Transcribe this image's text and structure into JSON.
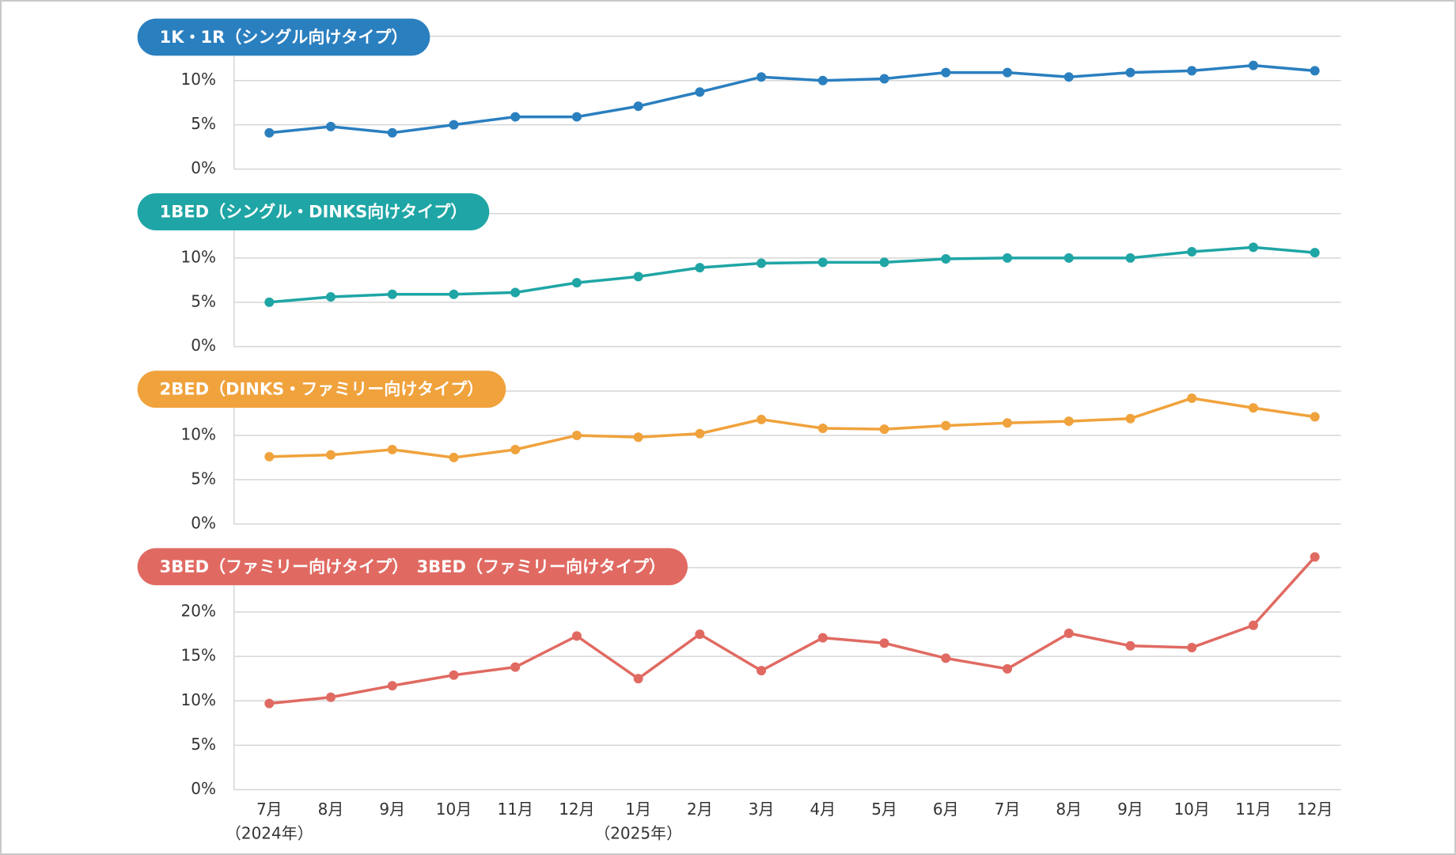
{
  "chart_data": [
    {
      "type": "line",
      "title": "1K・1R（シングル向けタイプ）",
      "color": "#2a7fbf",
      "values": [
        4.1,
        4.8,
        4.1,
        5.0,
        5.9,
        5.9,
        7.1,
        8.7,
        10.4,
        10.0,
        10.2,
        10.9,
        10.9,
        10.4,
        10.9,
        11.1,
        11.7,
        11.1
      ],
      "ylim": [
        0,
        15
      ],
      "yticks": [
        {
          "value": 0,
          "label": "0%"
        },
        {
          "value": 5,
          "label": "5%"
        },
        {
          "value": 10,
          "label": "10%"
        }
      ],
      "grid": true
    },
    {
      "type": "line",
      "title": "1BED（シングル・DINKS向けタイプ）",
      "color": "#1fa5a5",
      "values": [
        5.0,
        5.6,
        5.9,
        5.9,
        6.1,
        7.2,
        7.9,
        8.9,
        9.4,
        9.5,
        9.5,
        9.9,
        10.0,
        10.0,
        10.0,
        10.7,
        11.2,
        10.6
      ],
      "ylim": [
        0,
        15
      ],
      "yticks": [
        {
          "value": 0,
          "label": "0%"
        },
        {
          "value": 5,
          "label": "5%"
        },
        {
          "value": 10,
          "label": "10%"
        }
      ],
      "grid": true
    },
    {
      "type": "line",
      "title": "2BED（DINKS・ファミリー向けタイプ）",
      "color": "#f0a23c",
      "values": [
        7.6,
        7.8,
        8.4,
        7.5,
        8.4,
        10.0,
        9.8,
        10.2,
        11.8,
        10.8,
        10.7,
        11.1,
        11.4,
        11.6,
        11.9,
        14.2,
        13.1,
        12.1
      ],
      "ylim": [
        0,
        15
      ],
      "yticks": [
        {
          "value": 0,
          "label": "0%"
        },
        {
          "value": 5,
          "label": "5%"
        },
        {
          "value": 10,
          "label": "10%"
        }
      ],
      "grid": true
    },
    {
      "type": "line",
      "title": "3BED（ファミリー向けタイプ）　3BED（ファミリー向けタイプ）",
      "color": "#e06a62",
      "categories": [
        "7月",
        "8月",
        "9月",
        "10月",
        "11月",
        "12月",
        "1月",
        "2月",
        "3月",
        "4月",
        "5月",
        "6月",
        "7月",
        "8月",
        "9月",
        "10月",
        "11月",
        "12月"
      ],
      "year_labels": [
        "（2024年）",
        null,
        null,
        null,
        null,
        null,
        "（2025年）",
        null,
        null,
        null,
        null,
        null,
        null,
        null,
        null,
        null,
        null,
        null
      ],
      "values": [
        9.7,
        10.4,
        11.7,
        12.9,
        13.8,
        17.3,
        12.5,
        17.5,
        13.4,
        17.1,
        16.5,
        14.8,
        13.6,
        17.6,
        16.2,
        16.0,
        18.5,
        26.2
      ],
      "ylim": [
        0,
        25
      ],
      "yticks": [
        {
          "value": 0,
          "label": "0%"
        },
        {
          "value": 5,
          "label": "5%"
        },
        {
          "value": 10,
          "label": "10%"
        },
        {
          "value": 15,
          "label": "15%"
        },
        {
          "value": 20,
          "label": "20%"
        }
      ],
      "grid": true
    }
  ]
}
